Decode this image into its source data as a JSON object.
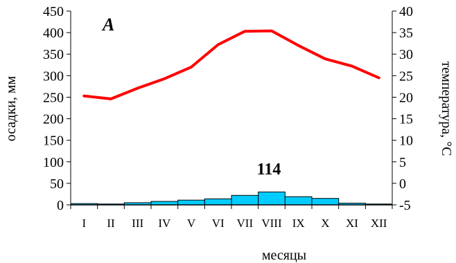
{
  "chart_data": {
    "type": "bar+line",
    "panel_label": "A",
    "annotation": "114",
    "xlabel": "месяцы",
    "ylabel_left": "осадки, мм",
    "ylabel_right": "температура, °С",
    "categories": [
      "I",
      "II",
      "III",
      "IV",
      "V",
      "VI",
      "VII",
      "VIII",
      "IX",
      "X",
      "XI",
      "XII"
    ],
    "left_axis": {
      "min": 0,
      "max": 450,
      "step": 50,
      "ticks": [
        "0",
        "50",
        "100",
        "150",
        "200",
        "250",
        "300",
        "350",
        "400",
        "450"
      ]
    },
    "right_axis": {
      "min": -5,
      "max": 40,
      "step": 5,
      "ticks": [
        "-5",
        "0",
        "5",
        "10",
        "15",
        "20",
        "25",
        "30",
        "35",
        "40"
      ]
    },
    "series": [
      {
        "name": "осадки",
        "kind": "bar",
        "axis": "left",
        "values": [
          3,
          2,
          5,
          8,
          11,
          14,
          22,
          30,
          19,
          15,
          4,
          2
        ]
      },
      {
        "name": "температура",
        "kind": "line",
        "axis": "right",
        "values": [
          20.3,
          19.6,
          22.1,
          24.3,
          27.0,
          32.2,
          35.3,
          35.4,
          32.0,
          28.9,
          27.2,
          24.5
        ]
      }
    ],
    "colors": {
      "bar_fill": "#00CCFF",
      "line": "#FF0000"
    }
  }
}
